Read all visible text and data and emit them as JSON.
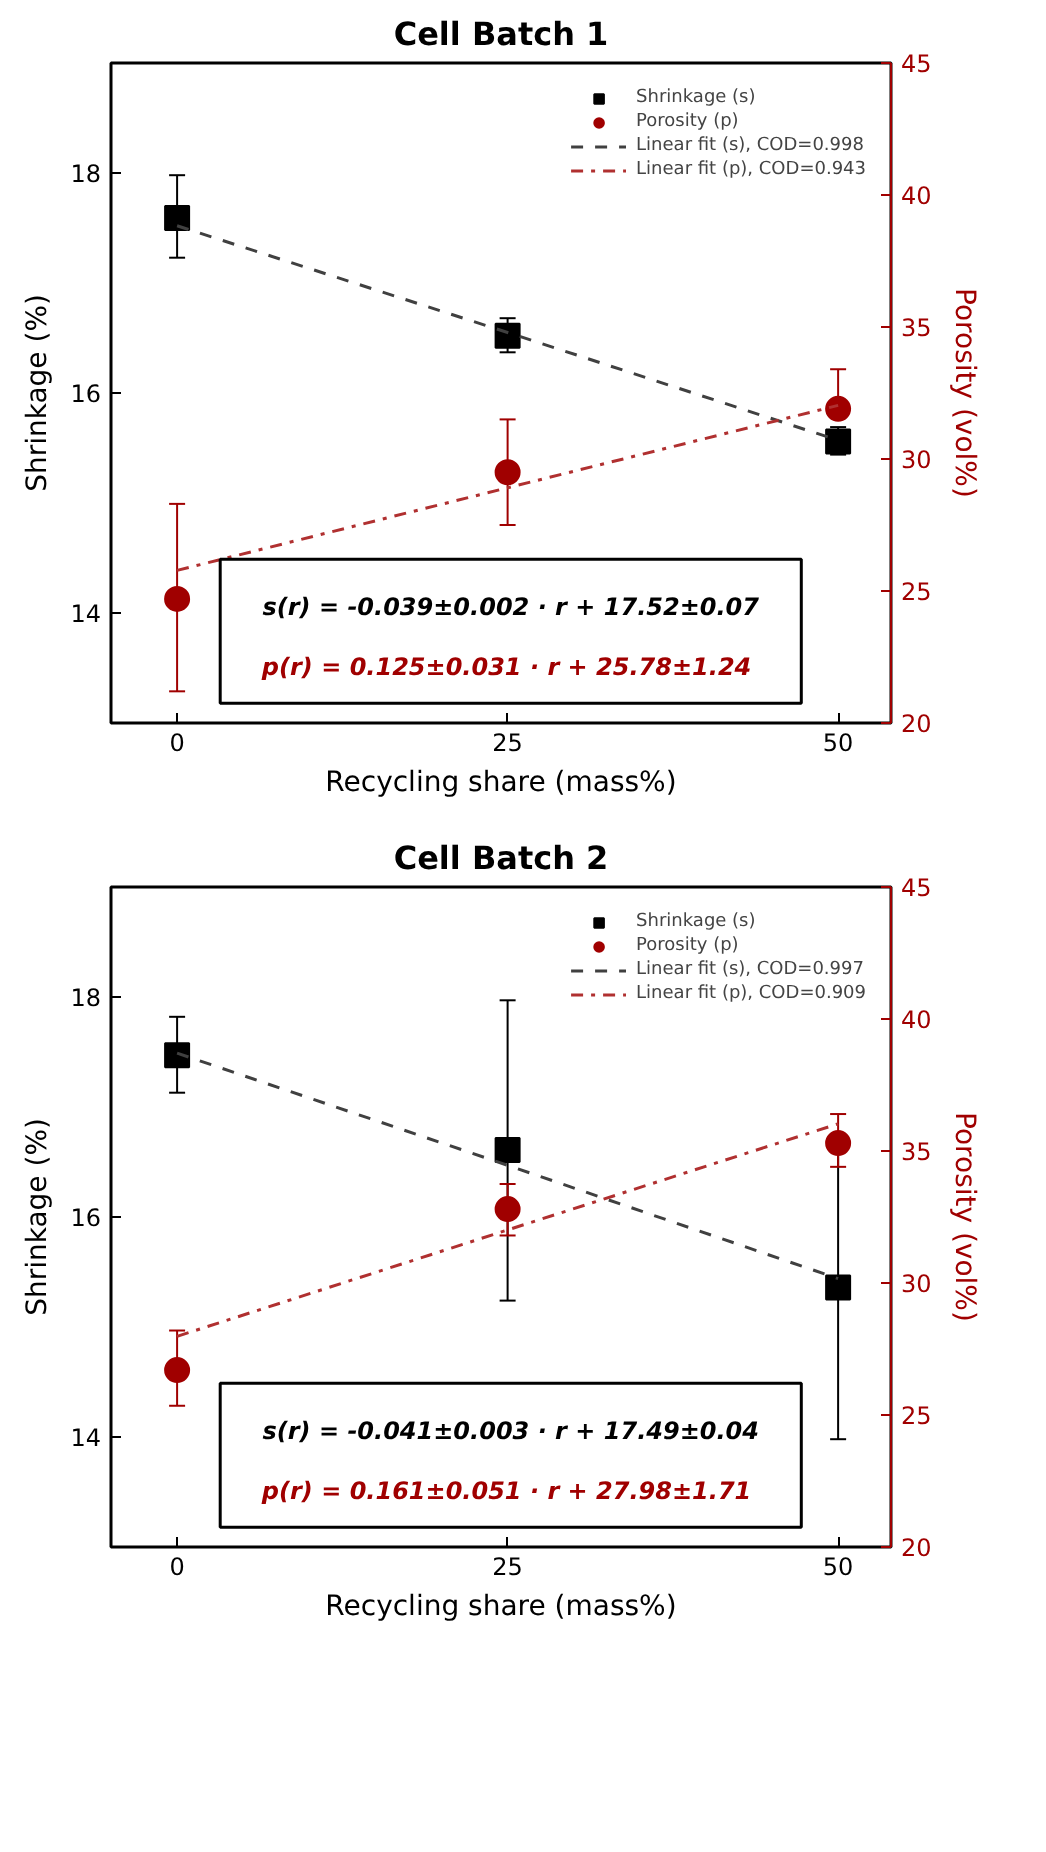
{
  "chart_data": [
    {
      "type": "scatter",
      "title": "Cell Batch 1",
      "xlabel": "Recycling share (mass%)",
      "ylabel": "Shrinkage (%)",
      "y2label": "Porosity (vol%)",
      "x": [
        0,
        25,
        50
      ],
      "xlim": [
        -5,
        54
      ],
      "xticks": [
        0,
        25,
        50
      ],
      "ylim": [
        13,
        19
      ],
      "yticks": [
        14,
        16,
        18
      ],
      "y2lim": [
        20,
        45
      ],
      "y2ticks": [
        20,
        25,
        30,
        35,
        40,
        45
      ],
      "grid": false,
      "legend": "top right",
      "series": [
        {
          "name": "Shrinkage (s)",
          "marker": "square",
          "color": "#000000",
          "values": [
            17.59,
            16.52,
            15.56
          ],
          "errors": [
            [
              17.23,
              17.98
            ],
            [
              16.37,
              16.68
            ],
            [
              15.44,
              15.69
            ]
          ]
        },
        {
          "name": "Porosity (p)",
          "marker": "circle",
          "color": "#a00000",
          "axis": "y2",
          "values": [
            24.7,
            29.5,
            31.9
          ],
          "errors": [
            [
              21.2,
              28.3
            ],
            [
              27.5,
              31.5
            ],
            [
              31.9,
              33.4
            ]
          ]
        },
        {
          "name": "Linear fit (s), COD=0.998",
          "type": "line",
          "line_style": "dashed",
          "color": "#404040",
          "values": [
            17.52,
            16.55,
            15.57
          ]
        },
        {
          "name": "Linear fit (p), COD=0.943",
          "type": "line",
          "line_style": "dashdot",
          "color": "#b03030",
          "axis": "y2",
          "values": [
            25.78,
            28.91,
            32.03
          ]
        }
      ],
      "annotations": [
        "s(r) = -0.039±0.002 · r + 17.52±0.07",
        "p(r) =  0.125±0.031 · r + 25.78±1.24"
      ]
    },
    {
      "type": "scatter",
      "title": "Cell Batch 2",
      "xlabel": "Recycling share (mass%)",
      "ylabel": "Shrinkage (%)",
      "y2label": "Porosity (vol%)",
      "x": [
        0,
        25,
        50
      ],
      "xlim": [
        -5,
        54
      ],
      "xticks": [
        0,
        25,
        50
      ],
      "ylim": [
        13,
        19
      ],
      "yticks": [
        14,
        16,
        18
      ],
      "y2lim": [
        20,
        45
      ],
      "y2ticks": [
        20,
        25,
        30,
        35,
        40,
        45
      ],
      "grid": false,
      "legend": "top right",
      "series": [
        {
          "name": "Shrinkage (s)",
          "marker": "square",
          "color": "#000000",
          "values": [
            17.47,
            16.61,
            15.36
          ],
          "errors": [
            [
              17.13,
              17.82
            ],
            [
              15.24,
              17.97
            ],
            [
              13.98,
              16.74
            ]
          ]
        },
        {
          "name": "Porosity (p)",
          "marker": "circle",
          "color": "#a00000",
          "axis": "y2",
          "values": [
            26.7,
            32.8,
            35.3
          ],
          "errors": [
            [
              25.35,
              28.2
            ],
            [
              31.8,
              33.75
            ],
            [
              34.4,
              36.4
            ]
          ]
        },
        {
          "name": "Linear fit (s), COD=0.997",
          "type": "line",
          "line_style": "dashed",
          "color": "#404040",
          "values": [
            17.49,
            16.47,
            15.44
          ]
        },
        {
          "name": "Linear fit (p), COD=0.909",
          "type": "line",
          "line_style": "dashdot",
          "color": "#b03030",
          "axis": "y2",
          "values": [
            27.98,
            32.01,
            36.03
          ]
        }
      ],
      "annotations": [
        "s(r) = -0.041±0.003 · r + 17.49±0.04",
        "p(r) =  0.161±0.051 · r + 27.98±1.71"
      ]
    }
  ]
}
